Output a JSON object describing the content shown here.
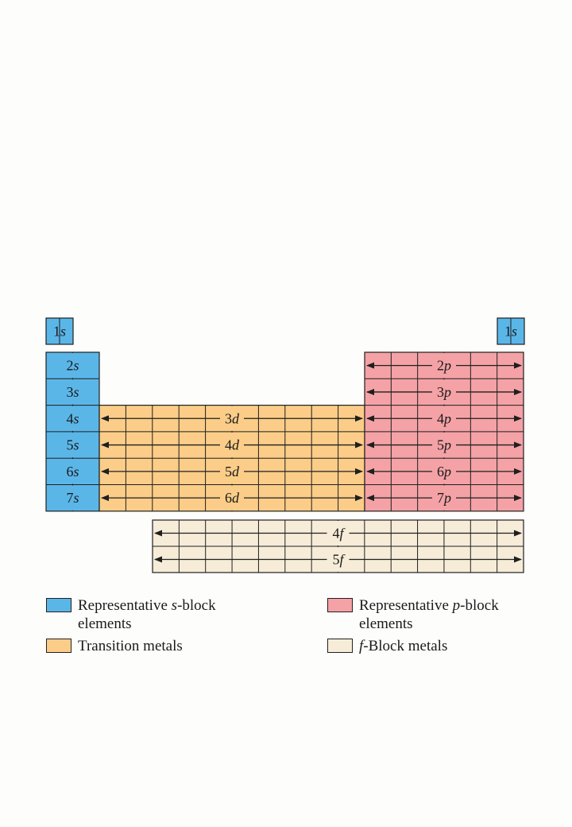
{
  "colors": {
    "s_block": "#5bb6e8",
    "d_block": "#fbcd88",
    "p_block": "#f4a2a6",
    "f_block": "#f6ecd8",
    "line": "#1f1f1f"
  },
  "blocks": {
    "top_s_left": {
      "num": "1",
      "orb": "s"
    },
    "top_s_right": {
      "num": "1",
      "orb": "s"
    },
    "s_rows": [
      {
        "num": "2",
        "orb": "s"
      },
      {
        "num": "3",
        "orb": "s"
      },
      {
        "num": "4",
        "orb": "s"
      },
      {
        "num": "5",
        "orb": "s"
      },
      {
        "num": "6",
        "orb": "s"
      },
      {
        "num": "7",
        "orb": "s"
      }
    ],
    "d_rows": [
      {
        "num": "3",
        "orb": "d"
      },
      {
        "num": "4",
        "orb": "d"
      },
      {
        "num": "5",
        "orb": "d"
      },
      {
        "num": "6",
        "orb": "d"
      }
    ],
    "p_rows": [
      {
        "num": "2",
        "orb": "p"
      },
      {
        "num": "3",
        "orb": "p"
      },
      {
        "num": "4",
        "orb": "p"
      },
      {
        "num": "5",
        "orb": "p"
      },
      {
        "num": "6",
        "orb": "p"
      },
      {
        "num": "7",
        "orb": "p"
      }
    ],
    "f_rows": [
      {
        "num": "4",
        "orb": "f"
      },
      {
        "num": "5",
        "orb": "f"
      }
    ]
  },
  "legend": {
    "s": {
      "pre": "Representative ",
      "ital": "s",
      "post": "-block",
      "line2": "elements"
    },
    "p": {
      "pre": "Representative ",
      "ital": "p",
      "post": "-block",
      "line2": "elements"
    },
    "d": {
      "pre": "Transition metals",
      "ital": "",
      "post": "",
      "line2": ""
    },
    "f": {
      "pre": "",
      "ital": "f",
      "post": "-Block metals",
      "line2": ""
    }
  }
}
